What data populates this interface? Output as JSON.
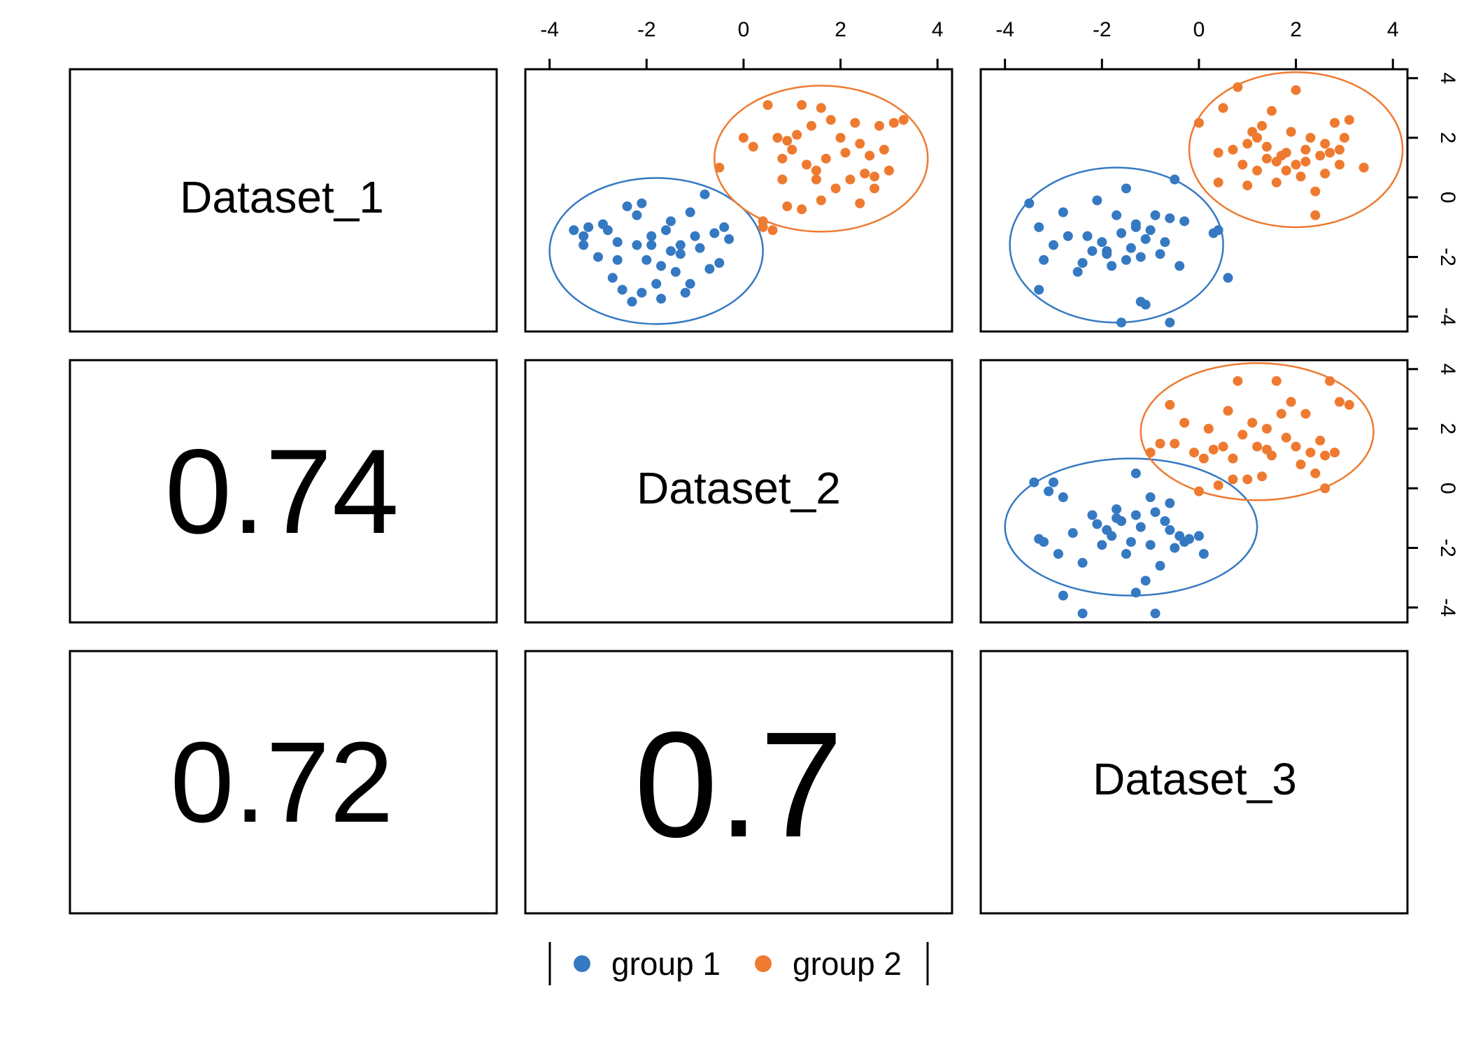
{
  "chart_data": {
    "type": "scatter",
    "variables": [
      "Dataset_1",
      "Dataset_2",
      "Dataset_3"
    ],
    "axis_ticks": [
      -4,
      -2,
      0,
      2,
      4
    ],
    "axis_range": [
      -4.5,
      4.3
    ],
    "correlations": [
      {
        "row": 2,
        "col": 1,
        "value": "0.74"
      },
      {
        "row": 3,
        "col": 1,
        "value": "0.72"
      },
      {
        "row": 3,
        "col": 2,
        "value": "0.7"
      }
    ],
    "groups": [
      {
        "name": "group 1",
        "color": "#3579C2"
      },
      {
        "name": "group 2",
        "color": "#EE7A30"
      }
    ],
    "legend_position": "bottom-center",
    "panels": [
      {
        "row": 1,
        "col": 2,
        "x": "Dataset_2",
        "y": "Dataset_1",
        "ellipses": [
          {
            "group": 0,
            "cx": -1.8,
            "cy": -1.8,
            "rx": 2.2,
            "ry": 2.45
          },
          {
            "group": 1,
            "cx": 1.6,
            "cy": 1.3,
            "rx": 2.2,
            "ry": 2.45
          }
        ],
        "points": {
          "group 1": [
            [
              -3.5,
              -1.1
            ],
            [
              -3.3,
              -1.3
            ],
            [
              -3.3,
              -1.6
            ],
            [
              -3.2,
              -1.0
            ],
            [
              -3.0,
              -2.0
            ],
            [
              -2.9,
              -0.9
            ],
            [
              -2.7,
              -2.7
            ],
            [
              -2.6,
              -1.5
            ],
            [
              -2.5,
              -3.1
            ],
            [
              -2.4,
              -0.3
            ],
            [
              -2.2,
              -0.6
            ],
            [
              -2.2,
              -1.6
            ],
            [
              -2.1,
              -0.2
            ],
            [
              -2.0,
              -2.1
            ],
            [
              -1.9,
              -1.3
            ],
            [
              -1.8,
              -2.9
            ],
            [
              -1.7,
              -3.4
            ],
            [
              -1.6,
              -1.1
            ],
            [
              -1.5,
              -1.8
            ],
            [
              -1.4,
              -2.5
            ],
            [
              -1.3,
              -1.9
            ],
            [
              -1.2,
              -3.2
            ],
            [
              -1.1,
              -2.9
            ],
            [
              -1.0,
              -1.3
            ],
            [
              -0.9,
              -1.7
            ],
            [
              -0.8,
              0.1
            ],
            [
              -0.7,
              -2.4
            ],
            [
              -0.6,
              -1.2
            ],
            [
              -0.5,
              -2.2
            ],
            [
              -0.3,
              -1.4
            ],
            [
              -1.7,
              -2.3
            ],
            [
              -2.1,
              -3.2
            ],
            [
              -1.3,
              -1.6
            ],
            [
              -2.6,
              -2.1
            ],
            [
              -1.9,
              -1.6
            ],
            [
              -0.4,
              -1.0
            ],
            [
              -1.1,
              -0.5
            ],
            [
              -2.3,
              -3.5
            ],
            [
              -1.5,
              -0.8
            ],
            [
              -2.8,
              -1.1
            ]
          ],
          "group 2": [
            [
              -0.5,
              1.0
            ],
            [
              0.0,
              2.0
            ],
            [
              0.2,
              1.7
            ],
            [
              0.4,
              -0.8
            ],
            [
              0.4,
              -1.0
            ],
            [
              0.5,
              3.1
            ],
            [
              0.6,
              -1.1
            ],
            [
              0.7,
              2.0
            ],
            [
              0.8,
              1.3
            ],
            [
              0.8,
              0.6
            ],
            [
              0.9,
              -0.3
            ],
            [
              1.0,
              1.6
            ],
            [
              1.1,
              2.1
            ],
            [
              1.2,
              -0.4
            ],
            [
              1.3,
              1.1
            ],
            [
              1.4,
              2.4
            ],
            [
              1.5,
              0.9
            ],
            [
              1.6,
              -0.1
            ],
            [
              1.7,
              1.3
            ],
            [
              1.8,
              2.6
            ],
            [
              1.9,
              0.3
            ],
            [
              2.0,
              2.0
            ],
            [
              2.1,
              1.5
            ],
            [
              2.2,
              0.6
            ],
            [
              2.3,
              2.5
            ],
            [
              2.4,
              -0.2
            ],
            [
              2.5,
              0.8
            ],
            [
              2.6,
              1.4
            ],
            [
              2.7,
              0.3
            ],
            [
              2.8,
              2.4
            ],
            [
              2.9,
              1.6
            ],
            [
              3.0,
              0.9
            ],
            [
              3.1,
              2.5
            ],
            [
              3.3,
              2.6
            ],
            [
              1.2,
              3.1
            ],
            [
              1.6,
              3.0
            ],
            [
              2.4,
              1.8
            ],
            [
              0.9,
              1.9
            ],
            [
              1.5,
              0.6
            ],
            [
              2.7,
              0.7
            ]
          ]
        }
      },
      {
        "row": 1,
        "col": 3,
        "x": "Dataset_3",
        "y": "Dataset_1",
        "ellipses": [
          {
            "group": 0,
            "cx": -1.7,
            "cy": -1.6,
            "rx": 2.2,
            "ry": 2.6
          },
          {
            "group": 1,
            "cx": 2.0,
            "cy": 1.6,
            "rx": 2.2,
            "ry": 2.6
          }
        ],
        "points": {
          "group 1": [
            [
              -3.5,
              -0.2
            ],
            [
              -3.3,
              -1.0
            ],
            [
              -3.3,
              -3.1
            ],
            [
              -3.2,
              -2.1
            ],
            [
              -3.0,
              -1.6
            ],
            [
              -2.8,
              -0.5
            ],
            [
              -2.7,
              -1.3
            ],
            [
              -2.5,
              -2.5
            ],
            [
              -2.4,
              -2.2
            ],
            [
              -2.2,
              -1.8
            ],
            [
              -2.1,
              -0.1
            ],
            [
              -2.0,
              -1.5
            ],
            [
              -1.9,
              -1.8
            ],
            [
              -1.8,
              -2.3
            ],
            [
              -1.7,
              -0.6
            ],
            [
              -1.6,
              -1.2
            ],
            [
              -1.5,
              0.3
            ],
            [
              -1.4,
              -1.7
            ],
            [
              -1.3,
              -0.9
            ],
            [
              -1.2,
              -2.0
            ],
            [
              -1.1,
              -3.6
            ],
            [
              -1.0,
              -1.1
            ],
            [
              -0.9,
              -0.6
            ],
            [
              -0.8,
              -1.9
            ],
            [
              -0.6,
              -0.7
            ],
            [
              -0.5,
              0.6
            ],
            [
              -0.4,
              -2.3
            ],
            [
              -0.3,
              -0.8
            ],
            [
              0.3,
              -1.2
            ],
            [
              0.4,
              -1.1
            ],
            [
              0.6,
              -2.7
            ],
            [
              -1.6,
              -4.2
            ],
            [
              -1.2,
              -3.5
            ],
            [
              -0.6,
              -4.2
            ],
            [
              -1.9,
              -1.9
            ],
            [
              -2.3,
              -1.3
            ],
            [
              -1.1,
              -1.4
            ],
            [
              -0.7,
              -1.5
            ],
            [
              -1.5,
              -2.1
            ],
            [
              -1.3,
              -1.0
            ]
          ],
          "group 2": [
            [
              0.0,
              2.5
            ],
            [
              0.4,
              1.5
            ],
            [
              0.4,
              0.5
            ],
            [
              0.5,
              3.0
            ],
            [
              0.7,
              1.6
            ],
            [
              0.8,
              3.7
            ],
            [
              0.9,
              1.1
            ],
            [
              1.0,
              0.4
            ],
            [
              1.1,
              2.2
            ],
            [
              1.2,
              0.9
            ],
            [
              1.3,
              2.4
            ],
            [
              1.4,
              1.3
            ],
            [
              1.5,
              2.9
            ],
            [
              1.6,
              0.5
            ],
            [
              1.7,
              1.4
            ],
            [
              1.8,
              0.9
            ],
            [
              1.9,
              2.2
            ],
            [
              2.0,
              1.1
            ],
            [
              2.1,
              0.7
            ],
            [
              2.2,
              1.6
            ],
            [
              2.3,
              2.0
            ],
            [
              2.4,
              0.2
            ],
            [
              2.5,
              1.4
            ],
            [
              2.6,
              0.8
            ],
            [
              2.7,
              1.5
            ],
            [
              2.8,
              2.5
            ],
            [
              2.9,
              1.1
            ],
            [
              3.0,
              2.0
            ],
            [
              3.1,
              2.6
            ],
            [
              3.4,
              1.0
            ],
            [
              2.0,
              3.6
            ],
            [
              2.4,
              -0.6
            ],
            [
              1.4,
              1.7
            ],
            [
              2.2,
              1.2
            ],
            [
              1.0,
              1.8
            ],
            [
              1.8,
              1.5
            ],
            [
              2.6,
              1.8
            ],
            [
              1.2,
              2.0
            ],
            [
              2.9,
              1.6
            ],
            [
              1.6,
              1.2
            ]
          ]
        }
      },
      {
        "row": 2,
        "col": 3,
        "x": "Dataset_3",
        "y": "Dataset_2",
        "ellipses": [
          {
            "group": 0,
            "cx": -1.4,
            "cy": -1.3,
            "rx": 2.6,
            "ry": 2.3
          },
          {
            "group": 1,
            "cx": 1.2,
            "cy": 1.9,
            "rx": 2.4,
            "ry": 2.3
          }
        ],
        "points": {
          "group 1": [
            [
              -3.4,
              0.2
            ],
            [
              -3.3,
              -1.7
            ],
            [
              -3.2,
              -1.8
            ],
            [
              -3.1,
              -0.1
            ],
            [
              -3.0,
              0.2
            ],
            [
              -2.9,
              -2.2
            ],
            [
              -2.8,
              -0.3
            ],
            [
              -2.8,
              -3.6
            ],
            [
              -2.6,
              -1.5
            ],
            [
              -2.4,
              -2.5
            ],
            [
              -2.2,
              -0.9
            ],
            [
              -2.1,
              -1.2
            ],
            [
              -2.0,
              -1.9
            ],
            [
              -1.9,
              -1.4
            ],
            [
              -1.8,
              -1.6
            ],
            [
              -1.7,
              -0.7
            ],
            [
              -1.6,
              -1.1
            ],
            [
              -1.5,
              -2.2
            ],
            [
              -1.4,
              -1.8
            ],
            [
              -1.3,
              -0.9
            ],
            [
              -1.2,
              -1.3
            ],
            [
              -1.1,
              -3.1
            ],
            [
              -1.0,
              -1.9
            ],
            [
              -0.9,
              -0.8
            ],
            [
              -0.8,
              -2.6
            ],
            [
              -0.7,
              -1.1
            ],
            [
              -0.6,
              -1.4
            ],
            [
              -0.5,
              -2.0
            ],
            [
              -0.4,
              -1.6
            ],
            [
              -0.3,
              -1.8
            ],
            [
              -0.2,
              -1.7
            ],
            [
              0.0,
              -1.6
            ],
            [
              0.1,
              -2.2
            ],
            [
              -1.3,
              0.5
            ],
            [
              -1.0,
              -0.3
            ],
            [
              -1.3,
              -3.5
            ],
            [
              -2.4,
              -4.2
            ],
            [
              -0.9,
              -4.2
            ],
            [
              -0.6,
              -0.5
            ],
            [
              -1.7,
              -1.0
            ]
          ],
          "group 2": [
            [
              -1.0,
              1.2
            ],
            [
              -0.8,
              1.5
            ],
            [
              -0.6,
              2.8
            ],
            [
              -0.5,
              1.5
            ],
            [
              -0.3,
              2.2
            ],
            [
              -0.1,
              1.2
            ],
            [
              0.0,
              -0.1
            ],
            [
              0.1,
              1.0
            ],
            [
              0.2,
              2.0
            ],
            [
              0.3,
              1.3
            ],
            [
              0.4,
              0.1
            ],
            [
              0.5,
              1.4
            ],
            [
              0.6,
              2.6
            ],
            [
              0.7,
              1.0
            ],
            [
              0.8,
              3.6
            ],
            [
              0.9,
              1.8
            ],
            [
              1.0,
              0.3
            ],
            [
              1.1,
              2.2
            ],
            [
              1.2,
              1.4
            ],
            [
              1.3,
              0.4
            ],
            [
              1.4,
              2.0
            ],
            [
              1.5,
              1.1
            ],
            [
              1.6,
              3.6
            ],
            [
              1.7,
              2.5
            ],
            [
              1.8,
              1.7
            ],
            [
              1.9,
              2.9
            ],
            [
              2.0,
              1.4
            ],
            [
              2.1,
              0.8
            ],
            [
              2.2,
              2.5
            ],
            [
              2.3,
              1.2
            ],
            [
              2.4,
              0.5
            ],
            [
              2.5,
              1.6
            ],
            [
              2.6,
              1.1
            ],
            [
              2.7,
              3.6
            ],
            [
              2.8,
              1.2
            ],
            [
              2.9,
              2.9
            ],
            [
              3.1,
              2.8
            ],
            [
              2.6,
              0.0
            ],
            [
              1.4,
              1.3
            ],
            [
              0.7,
              0.3
            ]
          ]
        }
      }
    ]
  }
}
